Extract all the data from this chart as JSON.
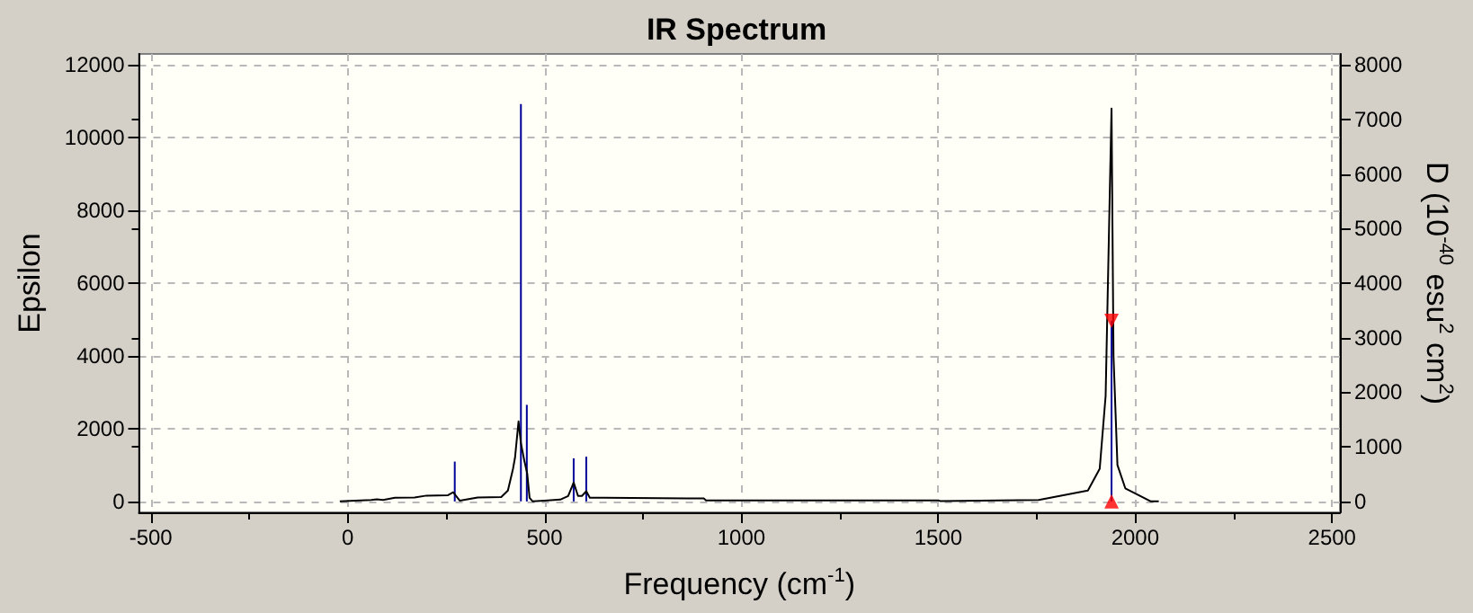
{
  "chart_data": {
    "type": "line",
    "title": "IR Spectrum",
    "xlabel": "Frequency (cm$^{-1}$)",
    "ylabel": "Epsilon",
    "y2label": "D (10$^{-40}$ esu$^{2}$ cm$^{2}$)",
    "xlim": [
      -530,
      2520
    ],
    "xticks": [
      -500,
      0,
      500,
      1000,
      1500,
      2000,
      2500
    ],
    "ylim": [
      -300,
      12300
    ],
    "yticks": [
      0,
      2000,
      4000,
      6000,
      8000,
      10000,
      12000
    ],
    "y2lim": [
      -200,
      8200
    ],
    "y2ticks": [
      0,
      1000,
      2000,
      3000,
      4000,
      5000,
      6000,
      7000,
      8000
    ],
    "grid": true,
    "marker": "none",
    "line_style": "solid",
    "series": [
      {
        "color": "#000000",
        "x": [
          -20,
          20,
          60,
          74,
          90,
          120,
          170,
          200,
          255,
          268,
          285,
          330,
          390,
          407,
          420,
          425,
          434,
          440,
          449,
          456,
          462,
          470,
          500,
          540,
          560,
          574,
          585,
          595,
          606,
          615,
          650,
          905,
          910,
          1500,
          1505,
          1755,
          1880,
          1910,
          1925,
          1935,
          1940,
          1945,
          1955,
          1975,
          2040,
          2060
        ],
        "values": [
          0,
          20,
          40,
          60,
          40,
          100,
          110,
          160,
          170,
          250,
          20,
          110,
          120,
          300,
          900,
          1200,
          2200,
          1600,
          1100,
          770,
          100,
          0,
          20,
          50,
          150,
          520,
          150,
          150,
          280,
          100,
          100,
          80,
          30,
          30,
          10,
          40,
          300,
          900,
          2900,
          8200,
          10800,
          4000,
          1000,
          360,
          0,
          0
        ]
      },
      {
        "type": "bar",
        "axis": "y2",
        "color": "#000099",
        "x": [
          272,
          440,
          455,
          574,
          606,
          1940
        ],
        "values": [
          730,
          7280,
          1770,
          790,
          820,
          3310
        ]
      },
      {
        "type": "scatter",
        "axis": "y2",
        "marker": "triangle",
        "color": "#ff0000",
        "x": [
          1940,
          1940
        ],
        "values": [
          3310,
          0
        ]
      }
    ]
  }
}
